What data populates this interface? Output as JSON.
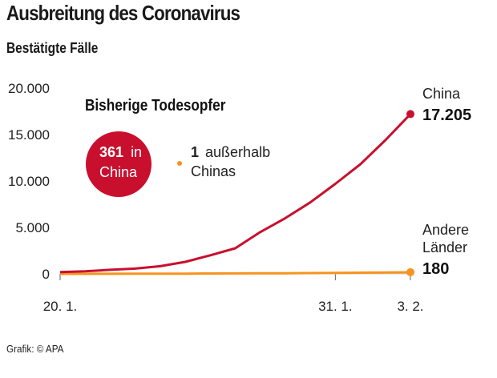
{
  "header": {
    "title": "Ausbreitung des Coronavirus",
    "subtitle": "Bestätigte Fälle"
  },
  "footer": {
    "source": "Grafik: © APA"
  },
  "colors": {
    "china": "#c8102e",
    "other": "#f7931e",
    "bubble_china": "#c8102e",
    "bubble_other": "#f7931e"
  },
  "chart_data": {
    "type": "line",
    "title": "Bestätigte Fälle",
    "x_tick_labels": [
      "20. 1.",
      "31. 1.",
      "3. 2."
    ],
    "y_tick_labels": [
      "20.000",
      "15.000",
      "10.000",
      "5.000",
      "0"
    ],
    "ylim": [
      0,
      20000
    ],
    "grid": false,
    "series": [
      {
        "name": "China",
        "end_label_value": "17.205",
        "x": [
          "20.1.",
          "21.1.",
          "22.1.",
          "23.1.",
          "24.1.",
          "25.1.",
          "26.1.",
          "27.1.",
          "28.1.",
          "29.1.",
          "30.1.",
          "31.1.",
          "1.2.",
          "2.2.",
          "3.2."
        ],
        "values": [
          200,
          280,
          440,
          570,
          830,
          1290,
          2000,
          2760,
          4500,
          6000,
          7700,
          9700,
          11800,
          14400,
          17205
        ]
      },
      {
        "name": "Andere Länder",
        "end_label_value": "180",
        "x": [
          "20.1.",
          "21.1.",
          "22.1.",
          "23.1.",
          "24.1.",
          "25.1.",
          "26.1.",
          "27.1.",
          "28.1.",
          "29.1.",
          "30.1.",
          "31.1.",
          "1.2.",
          "2.2.",
          "3.2."
        ],
        "values": [
          0,
          5,
          10,
          15,
          20,
          30,
          40,
          50,
          60,
          70,
          85,
          100,
          130,
          150,
          180
        ]
      }
    ],
    "inset": {
      "title": "Bisherige Todesopfer",
      "china_value": "361",
      "china_text_1": "in",
      "china_text_2": "China",
      "other_value": "1",
      "other_text_1": "außerhalb",
      "other_text_2": "Chinas"
    }
  }
}
